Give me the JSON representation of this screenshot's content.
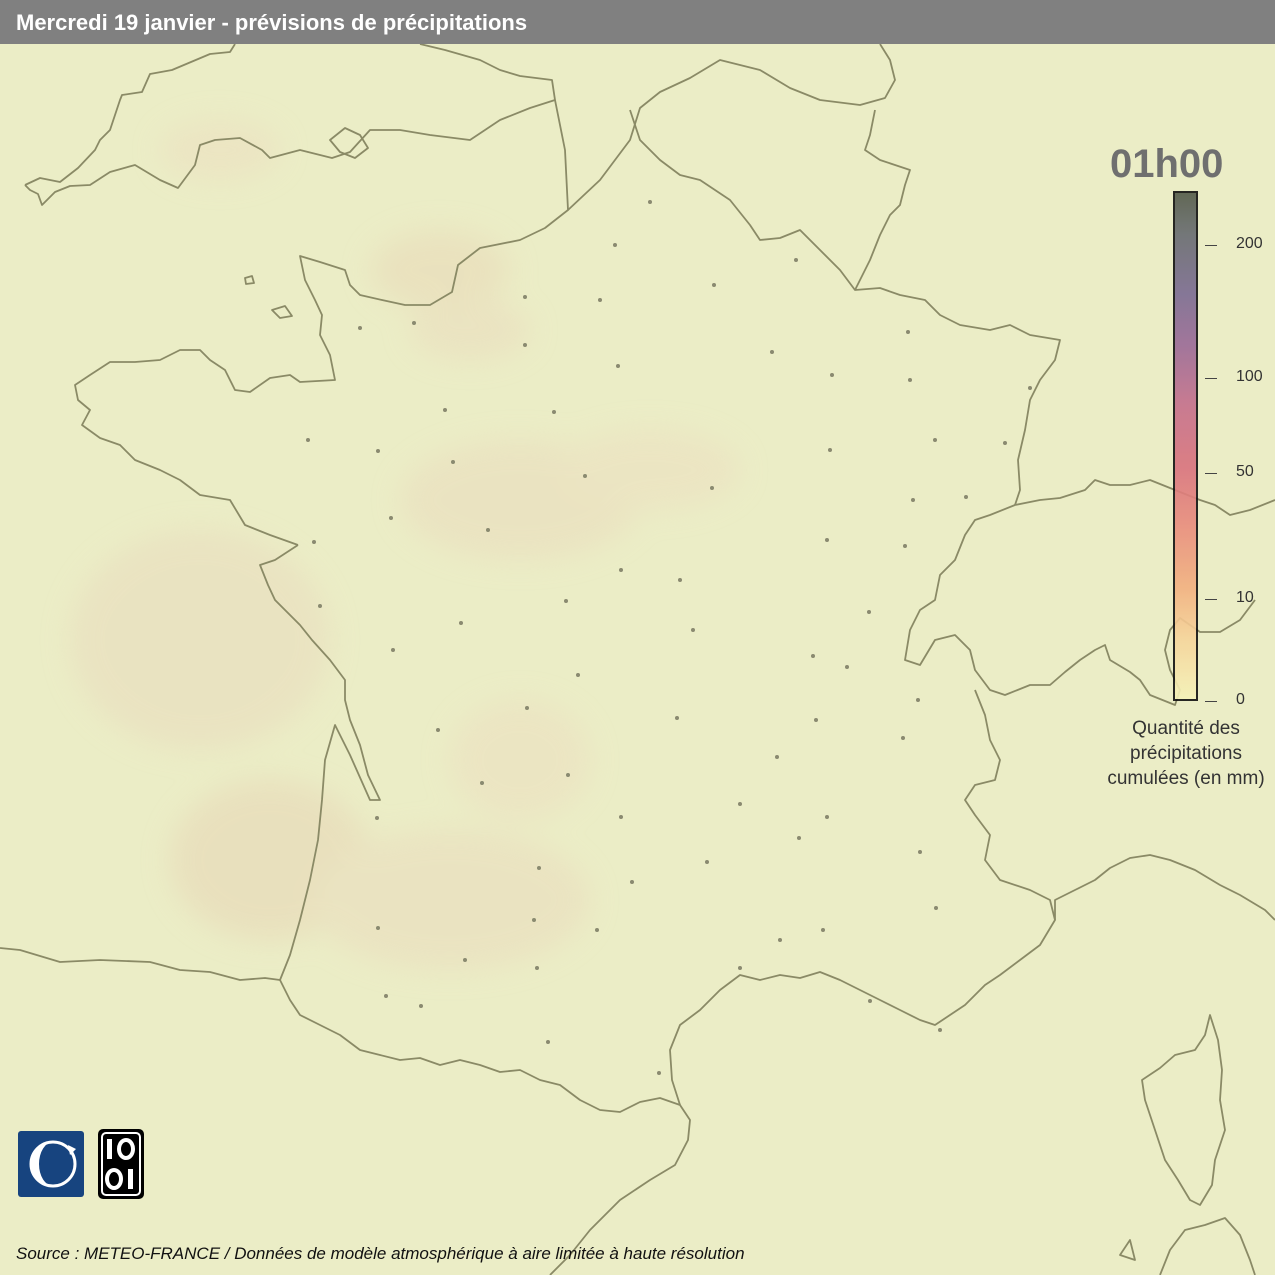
{
  "header": {
    "title": "Mercredi 19 janvier - prévisions de précipitations"
  },
  "map": {
    "time": "01h00"
  },
  "legend": {
    "ticks": [
      {
        "label": "200",
        "value": 200
      },
      {
        "label": "100",
        "value": 100
      },
      {
        "label": "50",
        "value": 50
      },
      {
        "label": "10",
        "value": 10
      },
      {
        "label": "0",
        "value": 0
      }
    ],
    "title_lines": [
      "Quantité des",
      "précipitations",
      "cumulées (en mm)"
    ],
    "colors": {
      "low": "#f4f2b8",
      "mid": "#e98d7d",
      "high": "#535a4a"
    }
  },
  "logos": {
    "meteo_france": "meteo-france-logo",
    "opendata": "10 01"
  },
  "footer": {
    "source": "Source : METEO-FRANCE / Données de modèle atmosphérique à aire limitée à haute résolution"
  },
  "colors": {
    "land": "#ebedc6",
    "border": "#8a8a66",
    "header": "#808080"
  }
}
